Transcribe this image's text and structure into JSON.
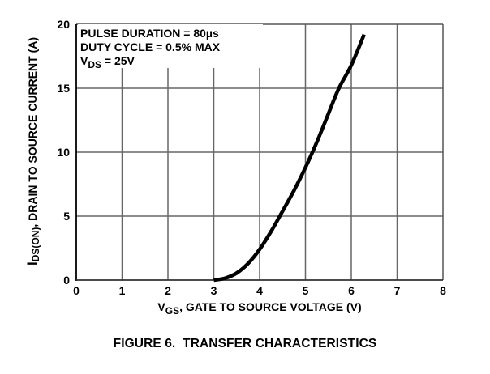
{
  "chart_data": {
    "type": "line",
    "title": "FIGURE 6.  TRANSFER CHARACTERISTICS",
    "xlabel": "V_GS, GATE TO SOURCE VOLTAGE (V)",
    "xlabel_main": "V",
    "xlabel_sub": "GS",
    "xlabel_rest": ", GATE TO SOURCE VOLTAGE (V)",
    "ylabel": "I_DS(ON), DRAIN TO SOURCE CURRENT (A)",
    "ylabel_main": "I",
    "ylabel_sub": "DS(ON)",
    "ylabel_rest": ", DRAIN TO SOURCE CURRENT (A)",
    "xlim": [
      0,
      8
    ],
    "ylim": [
      0,
      20
    ],
    "xticks": [
      0,
      1,
      2,
      3,
      4,
      5,
      6,
      7,
      8
    ],
    "yticks": [
      0,
      5,
      10,
      15,
      20
    ],
    "grid": true,
    "annotations": [
      "PULSE DURATION = 80µs",
      "DUTY CYCLE = 0.5% MAX",
      "V_DS = 25V"
    ],
    "annotation_vds_main": "V",
    "annotation_vds_sub": "DS",
    "annotation_vds_rest": " = 25V",
    "series": [
      {
        "name": "I_DS(ON)",
        "x": [
          3.0,
          3.25,
          3.5,
          3.75,
          4.0,
          4.25,
          4.44,
          4.75,
          5.0,
          5.25,
          5.5,
          5.73,
          6.0,
          6.28
        ],
        "y": [
          0.0,
          0.15,
          0.55,
          1.3,
          2.4,
          3.8,
          5.0,
          7.0,
          8.8,
          10.8,
          13.0,
          15.0,
          16.8,
          19.2
        ]
      }
    ]
  }
}
